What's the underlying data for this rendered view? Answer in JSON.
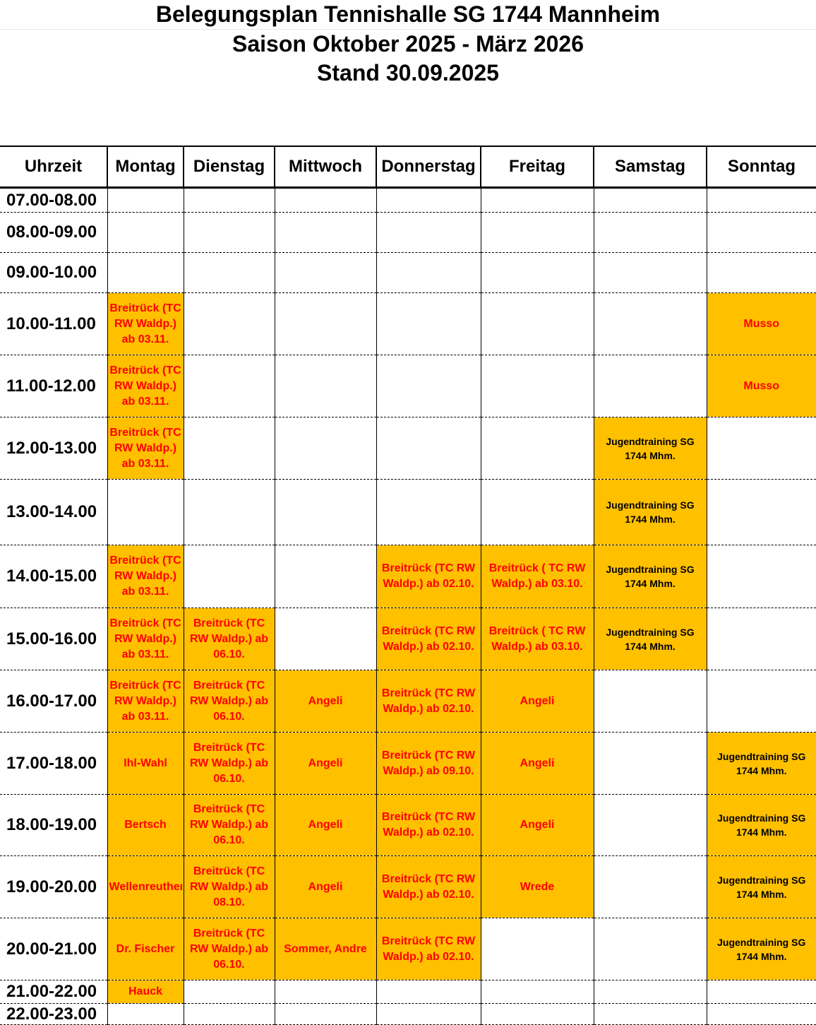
{
  "title": {
    "line1": "Belegungsplan Tennishalle SG 1744 Mannheim",
    "line2": "Saison Oktober 2025 - März 2026",
    "line3": "Stand 30.09.2025"
  },
  "colors": {
    "booked": "#FFC000",
    "text_red": "#FF0000",
    "text_black": "#000000"
  },
  "headers": [
    "Uhrzeit",
    "Montag",
    "Dienstag",
    "Mittwoch",
    "Donnerstag",
    "Freitag",
    "Samstag",
    "Sonntag"
  ],
  "rows": [
    {
      "time": "07.00-08.00",
      "cells": [
        "",
        "",
        "",
        "",
        "",
        "",
        ""
      ]
    },
    {
      "time": "08.00-09.00",
      "cells": [
        "",
        "",
        "",
        "",
        "",
        "",
        ""
      ]
    },
    {
      "time": "09.00-10.00",
      "cells": [
        "",
        "",
        "",
        "",
        "",
        "",
        ""
      ]
    },
    {
      "time": "10.00-11.00",
      "cells": [
        {
          "text": "Breitrück (TC RW Waldp.) ab 03.11.",
          "color": "red"
        },
        "",
        "",
        "",
        "",
        "",
        {
          "text": "Musso",
          "color": "red"
        }
      ]
    },
    {
      "time": "11.00-12.00",
      "cells": [
        {
          "text": "Breitrück (TC RW Waldp.)  ab 03.11.",
          "color": "red"
        },
        "",
        "",
        "",
        "",
        "",
        {
          "text": "Musso",
          "color": "red"
        }
      ]
    },
    {
      "time": "12.00-13.00",
      "cells": [
        {
          "text": "Breitrück (TC RW Waldp.)  ab 03.11.",
          "color": "red"
        },
        "",
        "",
        "",
        "",
        {
          "text": "Jugendtraining SG 1744 Mhm.",
          "color": "black"
        },
        ""
      ]
    },
    {
      "time": "13.00-14.00",
      "cells": [
        "",
        "",
        "",
        "",
        "",
        {
          "text": "Jugendtraining SG 1744 Mhm.",
          "color": "black"
        },
        ""
      ]
    },
    {
      "time": "14.00-15.00",
      "cells": [
        {
          "text": "Breitrück (TC RW Waldp.)  ab 03.11.",
          "color": "red"
        },
        "",
        "",
        {
          "text": "Breitrück (TC RW Waldp.) ab 02.10.",
          "color": "red"
        },
        {
          "text": "Breitrück ( TC RW Waldp.) ab 03.10.",
          "color": "red"
        },
        {
          "text": "Jugendtraining SG 1744 Mhm.",
          "color": "black"
        },
        ""
      ]
    },
    {
      "time": "15.00-16.00",
      "cells": [
        {
          "text": "Breitrück (TC RW Waldp.) ab 03.11.",
          "color": "red"
        },
        {
          "text": "Breitrück (TC RW Waldp.) ab 06.10.",
          "color": "red"
        },
        "",
        {
          "text": "Breitrück (TC RW Waldp.) ab 02.10.",
          "color": "red"
        },
        {
          "text": "Breitrück ( TC RW Waldp.) ab 03.10.",
          "color": "red"
        },
        {
          "text": "Jugendtraining SG 1744 Mhm.",
          "color": "black"
        },
        ""
      ]
    },
    {
      "time": "16.00-17.00",
      "cells": [
        {
          "text": "Breitrück (TC RW Waldp.) ab 03.11.",
          "color": "red"
        },
        {
          "text": "Breitrück (TC RW Waldp.) ab 06.10.",
          "color": "red"
        },
        {
          "text": "Angeli",
          "color": "red"
        },
        {
          "text": "Breitrück (TC RW Waldp.) ab 02.10.",
          "color": "red"
        },
        {
          "text": "Angeli",
          "color": "red"
        },
        "",
        ""
      ]
    },
    {
      "time": "17.00-18.00",
      "cells": [
        {
          "text": "Ihl-Wahl",
          "color": "red"
        },
        {
          "text": "Breitrück (TC RW Waldp.) ab 06.10.",
          "color": "red"
        },
        {
          "text": "Angeli",
          "color": "red"
        },
        {
          "text": "Breitrück (TC RW Waldp.) ab 09.10.",
          "color": "red"
        },
        {
          "text": "Angeli",
          "color": "red"
        },
        "",
        {
          "text": "Jugendtraining SG 1744 Mhm.",
          "color": "black"
        }
      ]
    },
    {
      "time": "18.00-19.00",
      "cells": [
        {
          "text": "Bertsch",
          "color": "red"
        },
        {
          "text": "Breitrück (TC RW Waldp.) ab 06.10.",
          "color": "red"
        },
        {
          "text": "Angeli",
          "color": "red"
        },
        {
          "text": "Breitrück (TC RW Waldp.) ab 02.10.",
          "color": "red"
        },
        {
          "text": "Angeli",
          "color": "red"
        },
        "",
        {
          "text": "Jugendtraining SG 1744 Mhm.",
          "color": "black"
        }
      ]
    },
    {
      "time": "19.00-20.00",
      "cells": [
        {
          "text": "Wellenreuther",
          "color": "red"
        },
        {
          "text": "Breitrück (TC RW Waldp.) ab 08.10.",
          "color": "red"
        },
        {
          "text": "Angeli",
          "color": "red"
        },
        {
          "text": "Breitrück (TC RW Waldp.) ab 02.10.",
          "color": "red"
        },
        {
          "text": "Wrede",
          "color": "red"
        },
        "",
        {
          "text": "Jugendtraining SG 1744 Mhm.",
          "color": "black"
        }
      ]
    },
    {
      "time": "20.00-21.00",
      "cells": [
        {
          "text": "Dr. Fischer",
          "color": "red"
        },
        {
          "text": "Breitrück (TC RW Waldp.) ab 06.10.",
          "color": "red"
        },
        {
          "text": "Sommer, Andre",
          "color": "red"
        },
        {
          "text": "Breitrück (TC RW Waldp.) ab 02.10.",
          "color": "red"
        },
        "",
        "",
        {
          "text": "Jugendtraining SG 1744 Mhm.",
          "color": "black"
        }
      ]
    },
    {
      "time": "21.00-22.00",
      "cells": [
        {
          "text": "Hauck",
          "color": "red"
        },
        "",
        "",
        "",
        "",
        "",
        ""
      ]
    },
    {
      "time": "22.00-23.00",
      "cells": [
        "",
        "",
        "",
        "",
        "",
        "",
        ""
      ]
    }
  ]
}
